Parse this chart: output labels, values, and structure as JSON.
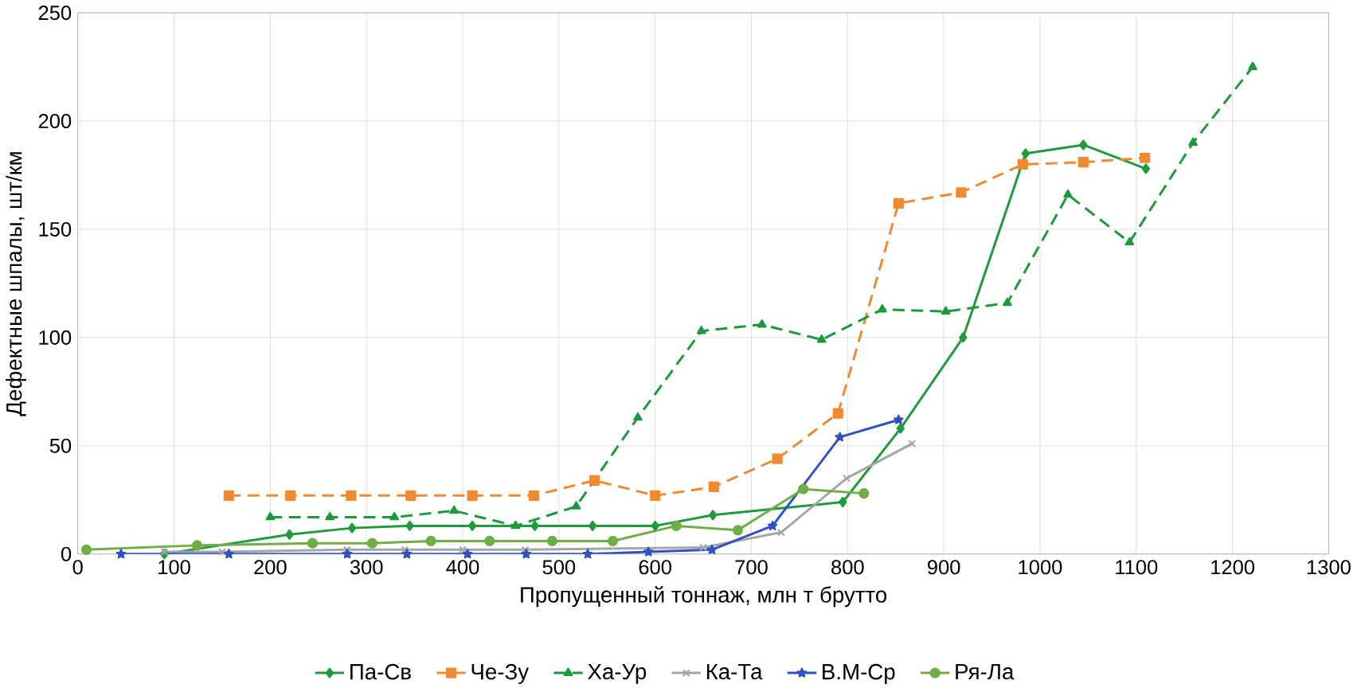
{
  "chart_data": {
    "type": "line",
    "xlabel": "Пропущенный тоннаж, млн т брутто",
    "ylabel": "Дефектные шпалы, шт/км",
    "xlim": [
      0,
      1300
    ],
    "ylim": [
      0,
      250
    ],
    "xticks": [
      0,
      100,
      200,
      300,
      400,
      500,
      600,
      700,
      800,
      900,
      1000,
      1100,
      1200,
      1300
    ],
    "yticks": [
      0,
      50,
      100,
      150,
      200,
      250
    ],
    "grid": true,
    "legend": "bottom",
    "series": [
      {
        "name": "Па-Св",
        "color": "#1f9a3c",
        "marker": "diamond",
        "line_style": "solid",
        "x": [
          90,
          220,
          285,
          345,
          410,
          475,
          535,
          600,
          660,
          795,
          855,
          920,
          985,
          1045,
          1110
        ],
        "values": [
          0,
          9,
          12,
          13,
          13,
          13,
          13,
          13,
          18,
          24,
          58,
          100,
          185,
          189,
          178
        ]
      },
      {
        "name": "Че-Зу",
        "color": "#f08a30",
        "marker": "square",
        "line_style": "dashed",
        "x": [
          157,
          221,
          284,
          346,
          410,
          474,
          537,
          600,
          661,
          727,
          790,
          853,
          918,
          982,
          1045,
          1109
        ],
        "values": [
          27,
          27,
          27,
          27,
          27,
          27,
          34,
          27,
          31,
          44,
          65,
          162,
          167,
          180,
          181,
          183
        ]
      },
      {
        "name": "Ха-Ур",
        "color": "#1a9a3a",
        "marker": "triangle",
        "line_style": "dashed",
        "x": [
          200,
          262,
          329,
          391,
          455,
          518,
          582,
          648,
          711,
          773,
          836,
          902,
          966,
          1029,
          1093,
          1159,
          1221
        ],
        "values": [
          17,
          17,
          17,
          20,
          13,
          22,
          63,
          103,
          106,
          99,
          113,
          112,
          116,
          166,
          144,
          190,
          225
        ]
      },
      {
        "name": "Ка-Та",
        "color": "#a5a5a5",
        "marker": "cross",
        "line_style": "solid",
        "x": [
          90,
          150,
          280,
          340,
          400,
          465,
          530,
          590,
          650,
          731,
          799,
          867
        ],
        "values": [
          1,
          1,
          2,
          2,
          2,
          2,
          null,
          null,
          3,
          10,
          35,
          51
        ]
      },
      {
        "name": "В.М-Ср",
        "color": "#2f52c0",
        "marker": "star",
        "line_style": "solid",
        "x": [
          45,
          157,
          280,
          342,
          405,
          466,
          530,
          593,
          659,
          722,
          792,
          853
        ],
        "values": [
          0,
          0,
          0,
          0,
          0,
          0,
          0,
          1,
          2,
          13,
          54,
          62
        ]
      },
      {
        "name": "Ря-Ла",
        "color": "#70ad47",
        "marker": "circle",
        "line_style": "solid",
        "x": [
          9,
          124,
          244,
          306,
          367,
          428,
          493,
          556,
          622,
          686,
          754,
          817
        ],
        "values": [
          2,
          4,
          5,
          5,
          6,
          6,
          6,
          6,
          13,
          11,
          30,
          28
        ]
      }
    ]
  }
}
